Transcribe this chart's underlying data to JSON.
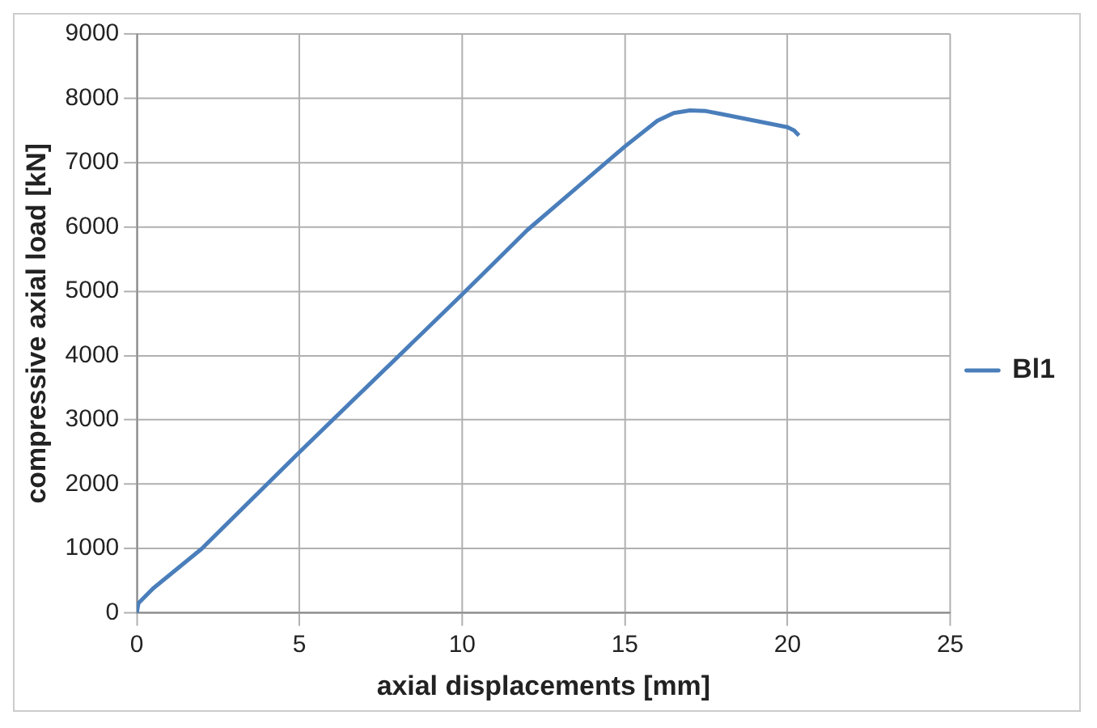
{
  "chart_data": {
    "type": "line",
    "xlabel": "axial displacements [mm]",
    "ylabel": "compressive axial load [kN]",
    "x": [
      0,
      0.05,
      0.5,
      2,
      5,
      10,
      12,
      15,
      16,
      16.5,
      17,
      17.5,
      18,
      19,
      20,
      20.2,
      20.35
    ],
    "series": [
      {
        "name": "Bl1",
        "color": "#4a7ebb",
        "values": [
          0,
          150,
          380,
          1000,
          2500,
          4950,
          5950,
          7250,
          7650,
          7770,
          7810,
          7800,
          7750,
          7650,
          7550,
          7500,
          7420
        ]
      }
    ],
    "xlim": [
      0,
      25
    ],
    "xticks": [
      0,
      5,
      10,
      15,
      20,
      25
    ],
    "ylim": [
      0,
      9000
    ],
    "yticks": [
      0,
      1000,
      2000,
      3000,
      4000,
      5000,
      6000,
      7000,
      8000,
      9000
    ],
    "grid": true,
    "legend": "right",
    "marker": "none",
    "line_style": "solid"
  }
}
